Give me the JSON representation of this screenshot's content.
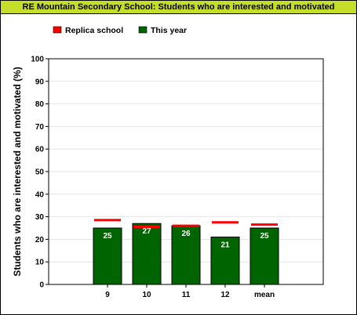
{
  "chart_data": {
    "type": "bar",
    "title": "RE Mountain Secondary School: Students who are interested and motivated",
    "ylabel": "Students who are interested and motivated (%)",
    "xlabel": "",
    "ylim": [
      0,
      100
    ],
    "yticks": [
      0,
      10,
      20,
      30,
      40,
      50,
      60,
      70,
      80,
      90,
      100
    ],
    "categories": [
      "9",
      "10",
      "11",
      "12",
      "mean"
    ],
    "series": [
      {
        "name": "This year",
        "type": "bar",
        "color": "#006400",
        "values": [
          25,
          27,
          26,
          21,
          25
        ]
      },
      {
        "name": "Replica school",
        "type": "marker",
        "color": "#ff0000",
        "values": [
          28.5,
          25.5,
          26,
          27.5,
          26.5
        ]
      }
    ],
    "legend": {
      "placement": "top-left",
      "entries": [
        "Replica school",
        "This year"
      ]
    },
    "grid": true
  }
}
